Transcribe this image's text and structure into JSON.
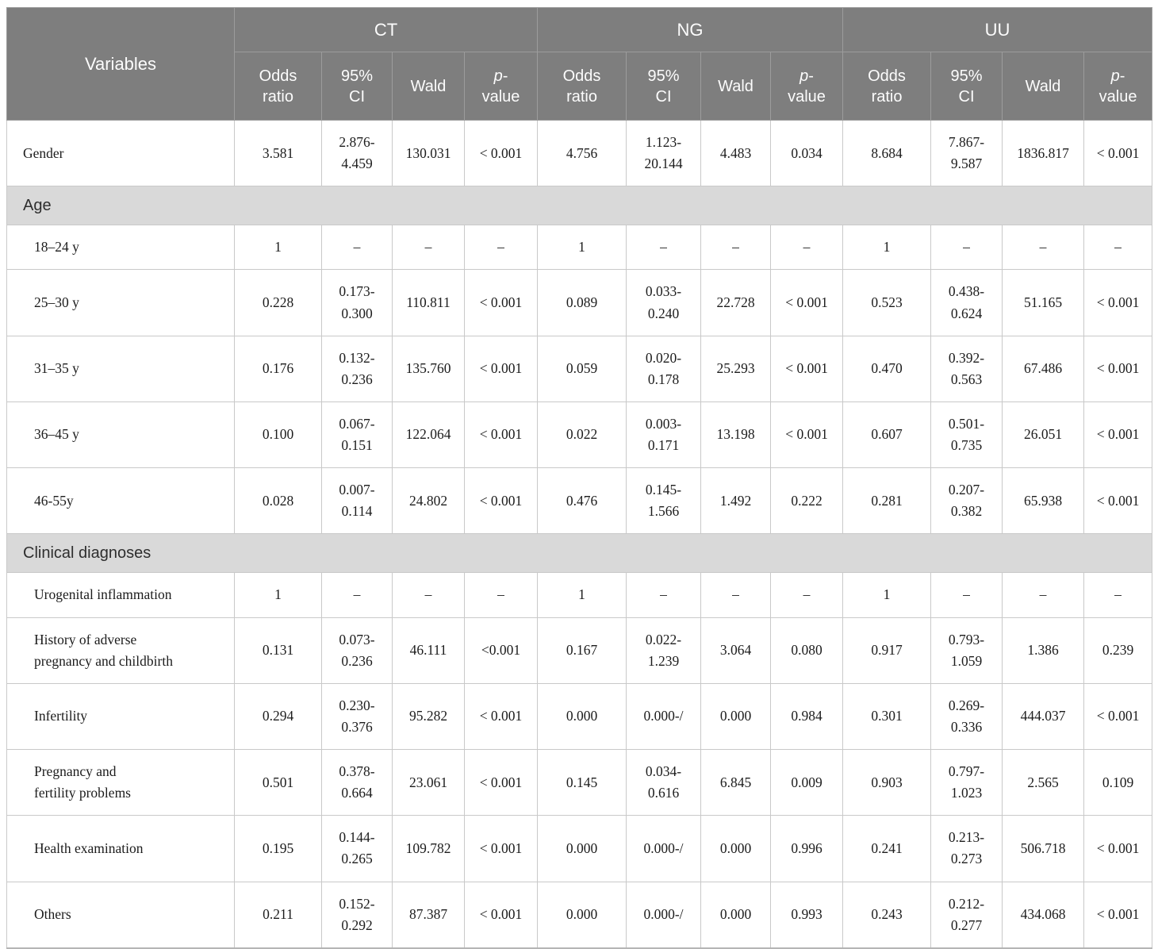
{
  "table": {
    "header": {
      "variables": "Variables",
      "groups": [
        "CT",
        "NG",
        "UU"
      ],
      "odds": "Odds\nratio",
      "ci": "95%\nCI",
      "wald": "Wald",
      "p_italic": "p",
      "p_rest": "-\nvalue"
    },
    "colors": {
      "header_bg": "#7e7e7e",
      "header_text": "#fcfcfc",
      "section_bg": "#d9d9d9",
      "border": "#c9c9c9"
    },
    "rows": [
      {
        "type": "data",
        "label": "Gender",
        "indent": false,
        "cells": [
          "3.581",
          "2.876-\n4.459",
          "130.031",
          "< 0.001",
          "4.756",
          "1.123-\n20.144",
          "4.483",
          "0.034",
          "8.684",
          "7.867-\n9.587",
          "1836.817",
          "< 0.001"
        ]
      },
      {
        "type": "section",
        "label": "Age"
      },
      {
        "type": "data",
        "label": "18–24 y",
        "indent": true,
        "cells": [
          "1",
          "–",
          "–",
          "–",
          "1",
          "–",
          "–",
          "–",
          "1",
          "–",
          "–",
          "–"
        ]
      },
      {
        "type": "data",
        "label": "25–30 y",
        "indent": true,
        "cells": [
          "0.228",
          "0.173-\n0.300",
          "110.811",
          "< 0.001",
          "0.089",
          "0.033-\n0.240",
          "22.728",
          "< 0.001",
          "0.523",
          "0.438-\n0.624",
          "51.165",
          "< 0.001"
        ]
      },
      {
        "type": "data",
        "label": "31–35 y",
        "indent": true,
        "cells": [
          "0.176",
          "0.132-\n0.236",
          "135.760",
          "< 0.001",
          "0.059",
          "0.020-\n0.178",
          "25.293",
          "< 0.001",
          "0.470",
          "0.392-\n0.563",
          "67.486",
          "< 0.001"
        ]
      },
      {
        "type": "data",
        "label": "36–45 y",
        "indent": true,
        "cells": [
          "0.100",
          "0.067-\n0.151",
          "122.064",
          "< 0.001",
          "0.022",
          "0.003-\n0.171",
          "13.198",
          "< 0.001",
          "0.607",
          "0.501-\n0.735",
          "26.051",
          "< 0.001"
        ]
      },
      {
        "type": "data",
        "label": "46-55y",
        "indent": true,
        "cells": [
          "0.028",
          "0.007-\n0.114",
          "24.802",
          "< 0.001",
          "0.476",
          "0.145-\n1.566",
          "1.492",
          "0.222",
          "0.281",
          "0.207-\n0.382",
          "65.938",
          "< 0.001"
        ]
      },
      {
        "type": "section",
        "label": "Clinical diagnoses"
      },
      {
        "type": "data",
        "label": "Urogenital inflammation",
        "indent": true,
        "cells": [
          "1",
          "–",
          "–",
          "–",
          "1",
          "–",
          "–",
          "–",
          "1",
          "–",
          "–",
          "–"
        ]
      },
      {
        "type": "data",
        "label": "History of adverse\npregnancy and childbirth",
        "indent": true,
        "cells": [
          "0.131",
          "0.073-\n0.236",
          "46.111",
          "<0.001",
          "0.167",
          "0.022-\n1.239",
          "3.064",
          "0.080",
          "0.917",
          "0.793-\n1.059",
          "1.386",
          "0.239"
        ]
      },
      {
        "type": "data",
        "label": "Infertility",
        "indent": true,
        "cells": [
          "0.294",
          "0.230-\n0.376",
          "95.282",
          "< 0.001",
          "0.000",
          "0.000-/",
          "0.000",
          "0.984",
          "0.301",
          "0.269-\n0.336",
          "444.037",
          "< 0.001"
        ]
      },
      {
        "type": "data",
        "label": "Pregnancy and\nfertility problems",
        "indent": true,
        "cells": [
          "0.501",
          "0.378-\n0.664",
          "23.061",
          "< 0.001",
          "0.145",
          "0.034-\n0.616",
          "6.845",
          "0.009",
          "0.903",
          "0.797-\n1.023",
          "2.565",
          "0.109"
        ]
      },
      {
        "type": "data",
        "label": "Health examination",
        "indent": true,
        "cells": [
          "0.195",
          "0.144-\n0.265",
          "109.782",
          "< 0.001",
          "0.000",
          "0.000-/",
          "0.000",
          "0.996",
          "0.241",
          "0.213-\n0.273",
          "506.718",
          "< 0.001"
        ]
      },
      {
        "type": "data",
        "label": "Others",
        "indent": true,
        "cells": [
          "0.211",
          "0.152-\n0.292",
          "87.387",
          "< 0.001",
          "0.000",
          "0.000-/",
          "0.000",
          "0.993",
          "0.243",
          "0.212-\n0.277",
          "434.068",
          "< 0.001"
        ]
      }
    ]
  }
}
